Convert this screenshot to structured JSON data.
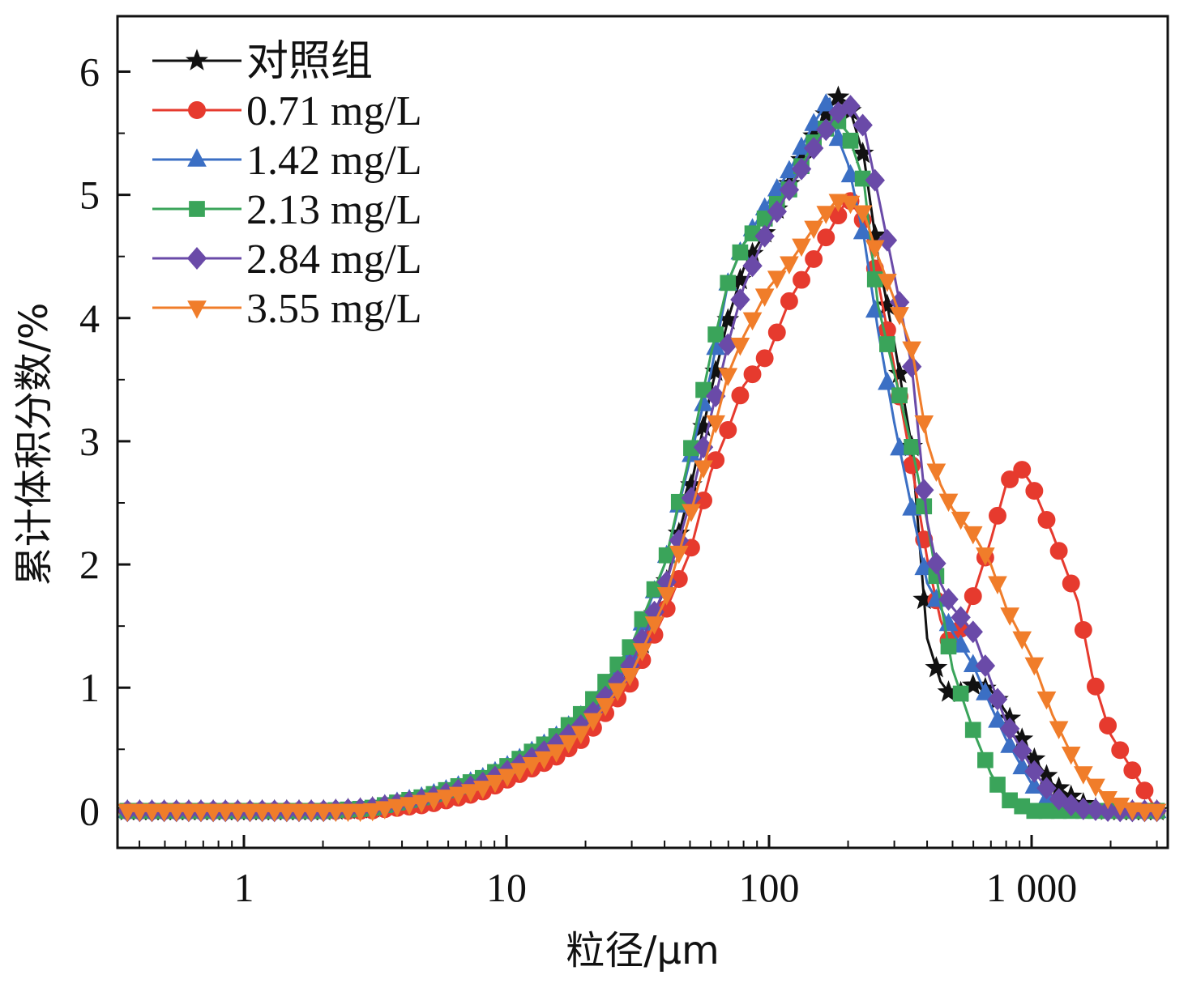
{
  "chart_data": {
    "type": "line",
    "xlabel": "粒径/μm",
    "ylabel": "累计体积分数/%",
    "xscale": "log",
    "xlim": [
      0.33,
      3300
    ],
    "ylim": [
      -0.3,
      6.45
    ],
    "xticks": [
      {
        "value": 1,
        "label": "1"
      },
      {
        "value": 10,
        "label": "10"
      },
      {
        "value": 100,
        "label": "100"
      },
      {
        "value": 1000,
        "label": "1 000"
      }
    ],
    "yticks": [
      {
        "value": 0,
        "label": "0"
      },
      {
        "value": 1,
        "label": "1"
      },
      {
        "value": 2,
        "label": "2"
      },
      {
        "value": 3,
        "label": "3"
      },
      {
        "value": 4,
        "label": "4"
      },
      {
        "value": 5,
        "label": "5"
      },
      {
        "value": 6,
        "label": "6"
      }
    ],
    "legend_position": "top-left",
    "grid": false,
    "series": [
      {
        "name": "对照组",
        "color": "#111111",
        "marker": "star",
        "x": [
          0.35,
          0.5,
          1,
          2,
          3,
          5,
          8,
          10,
          15,
          20,
          30,
          40,
          50,
          60,
          70,
          80,
          100,
          120,
          150,
          180,
          200,
          230,
          260,
          300,
          350,
          400,
          450,
          500,
          600,
          700,
          800,
          1000,
          1200,
          1500,
          1700,
          2000,
          2500,
          3000
        ],
        "y": [
          0,
          0,
          0,
          0,
          0.02,
          0.1,
          0.22,
          0.32,
          0.52,
          0.7,
          1.15,
          1.8,
          2.6,
          3.4,
          4.0,
          4.4,
          4.75,
          5.1,
          5.5,
          5.8,
          5.75,
          5.3,
          4.5,
          3.8,
          2.95,
          1.4,
          1.05,
          0.92,
          1.02,
          0.98,
          0.8,
          0.45,
          0.22,
          0.08,
          0.02,
          0,
          0,
          0
        ]
      },
      {
        "name": "0.71 mg/L",
        "color": "#e63a2e",
        "marker": "circle",
        "x": [
          0.35,
          0.5,
          1,
          2,
          3,
          5,
          8,
          10,
          15,
          20,
          30,
          40,
          50,
          60,
          70,
          80,
          100,
          120,
          150,
          180,
          200,
          230,
          260,
          300,
          350,
          400,
          450,
          500,
          600,
          700,
          800,
          900,
          1000,
          1200,
          1500,
          1700,
          2000,
          2500,
          3000
        ],
        "y": [
          0,
          0,
          0,
          0,
          0,
          0.05,
          0.15,
          0.25,
          0.42,
          0.6,
          1.05,
          1.6,
          2.1,
          2.75,
          3.1,
          3.45,
          3.72,
          4.15,
          4.5,
          4.8,
          4.98,
          4.78,
          4.3,
          3.6,
          2.8,
          2.05,
          1.55,
          1.3,
          1.75,
          2.2,
          2.65,
          2.8,
          2.65,
          2.25,
          1.7,
          1.1,
          0.62,
          0.28,
          0
        ]
      },
      {
        "name": "1.42 mg/L",
        "color": "#3b6fc4",
        "marker": "triangle-up",
        "x": [
          0.35,
          0.5,
          1,
          2,
          3,
          5,
          8,
          10,
          15,
          20,
          30,
          40,
          50,
          60,
          70,
          80,
          100,
          120,
          150,
          170,
          180,
          200,
          230,
          260,
          300,
          350,
          400,
          450,
          500,
          600,
          700,
          800,
          1000,
          1200,
          1500,
          2000,
          2500,
          3000
        ],
        "y": [
          0,
          0,
          0,
          0,
          0.02,
          0.12,
          0.26,
          0.36,
          0.58,
          0.8,
          1.3,
          2.0,
          2.85,
          3.55,
          4.3,
          4.6,
          4.95,
          5.2,
          5.6,
          5.78,
          5.5,
          5.25,
          4.65,
          3.9,
          3.15,
          2.45,
          1.85,
          1.65,
          1.45,
          1.18,
          0.85,
          0.58,
          0.22,
          0.05,
          0,
          0,
          0,
          0
        ]
      },
      {
        "name": "2.13 mg/L",
        "color": "#3aa45a",
        "marker": "square",
        "x": [
          0.35,
          0.5,
          1,
          2,
          3,
          5,
          8,
          10,
          15,
          20,
          30,
          40,
          50,
          60,
          70,
          80,
          100,
          120,
          150,
          180,
          200,
          230,
          260,
          300,
          350,
          400,
          450,
          500,
          600,
          700,
          800,
          1000,
          1200,
          1500,
          2000,
          2500,
          3000
        ],
        "y": [
          0,
          0,
          0,
          0,
          0.02,
          0.12,
          0.26,
          0.36,
          0.58,
          0.82,
          1.35,
          2.0,
          2.9,
          3.7,
          4.3,
          4.6,
          4.85,
          5.05,
          5.45,
          5.62,
          5.5,
          5.1,
          4.1,
          3.55,
          2.95,
          2.35,
          1.7,
          1.15,
          0.65,
          0.3,
          0.1,
          0,
          0,
          0,
          0,
          0,
          0
        ]
      },
      {
        "name": "2.84 mg/L",
        "color": "#6a4aa8",
        "marker": "diamond",
        "x": [
          0.35,
          0.5,
          1,
          2,
          3,
          5,
          8,
          10,
          15,
          20,
          30,
          40,
          50,
          60,
          70,
          80,
          100,
          120,
          150,
          180,
          200,
          230,
          260,
          300,
          350,
          400,
          450,
          500,
          600,
          700,
          800,
          1000,
          1200,
          1500,
          2000,
          2500,
          3000
        ],
        "y": [
          0,
          0,
          0,
          0,
          0.02,
          0.1,
          0.22,
          0.32,
          0.52,
          0.72,
          1.2,
          1.8,
          2.5,
          3.2,
          3.8,
          4.25,
          4.75,
          5.05,
          5.4,
          5.65,
          5.75,
          5.55,
          5.0,
          4.35,
          3.6,
          2.35,
          1.85,
          1.65,
          1.45,
          1.05,
          0.72,
          0.35,
          0.12,
          0.02,
          0,
          0,
          0
        ]
      },
      {
        "name": "3.55 mg/L",
        "color": "#f07d2a",
        "marker": "triangle-down",
        "x": [
          0.35,
          0.5,
          1,
          2,
          3,
          5,
          8,
          10,
          15,
          20,
          30,
          40,
          50,
          60,
          70,
          80,
          100,
          120,
          150,
          180,
          200,
          230,
          260,
          300,
          350,
          400,
          450,
          500,
          600,
          700,
          800,
          1000,
          1200,
          1500,
          2000,
          2500,
          3000
        ],
        "y": [
          0,
          0,
          0,
          0,
          0,
          0.08,
          0.18,
          0.28,
          0.46,
          0.66,
          1.12,
          1.7,
          2.4,
          3.0,
          3.55,
          3.85,
          4.25,
          4.45,
          4.75,
          4.95,
          4.95,
          4.85,
          4.5,
          4.15,
          3.75,
          3.0,
          2.65,
          2.45,
          2.25,
          2.0,
          1.65,
          1.25,
          0.78,
          0.35,
          0.08,
          0,
          0
        ]
      }
    ]
  }
}
